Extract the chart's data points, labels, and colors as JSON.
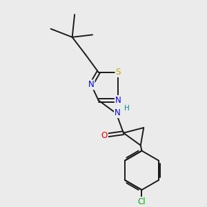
{
  "background_color": "#ebebeb",
  "bond_color": "#1a1a1a",
  "bond_width": 1.4,
  "atom_colors": {
    "C": "#1a1a1a",
    "N": "#0000ee",
    "S": "#bbaa00",
    "O": "#ee0000",
    "Cl": "#00aa00",
    "H": "#008888"
  },
  "font_size": 8.5,
  "figsize": [
    3.0,
    3.0
  ],
  "dpi": 100
}
